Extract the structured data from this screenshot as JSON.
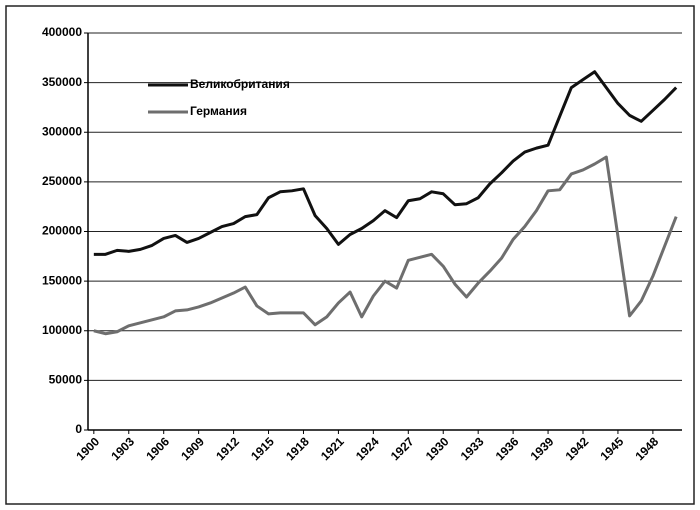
{
  "chart_data": {
    "type": "line",
    "categories": [
      "1900",
      null,
      null,
      "1903",
      null,
      null,
      "1906",
      null,
      null,
      "1909",
      null,
      null,
      "1912",
      null,
      null,
      "1915",
      null,
      null,
      "1918",
      null,
      null,
      "1921",
      null,
      null,
      "1924",
      null,
      null,
      "1927",
      null,
      null,
      "1930",
      null,
      null,
      "1933",
      null,
      null,
      "1936",
      null,
      null,
      "1939",
      null,
      null,
      "1942",
      null,
      null,
      "1945",
      null,
      null,
      "1948",
      null,
      null
    ],
    "series": [
      {
        "name": "Великобритания",
        "color": "#111111",
        "values": [
          177000,
          177000,
          181000,
          180000,
          182000,
          186000,
          193000,
          196000,
          189000,
          193000,
          199000,
          205000,
          208000,
          215000,
          217000,
          234000,
          240000,
          241000,
          243000,
          216000,
          203000,
          187000,
          197000,
          203000,
          211000,
          221000,
          214000,
          231000,
          233000,
          240000,
          238000,
          227000,
          228000,
          234000,
          248000,
          259000,
          271000,
          280000,
          284000,
          287000,
          316000,
          345000,
          353000,
          361000,
          345000,
          329000,
          317000,
          311000,
          322000,
          333000,
          345000
        ]
      },
      {
        "name": "Германия",
        "color": "#6e6e6e",
        "values": [
          100000,
          97000,
          99000,
          105000,
          108000,
          111000,
          114000,
          120000,
          121000,
          124000,
          128000,
          133000,
          138000,
          144000,
          125000,
          117000,
          118000,
          118000,
          118000,
          106000,
          114000,
          128000,
          139000,
          114000,
          135000,
          150000,
          143000,
          171000,
          174000,
          177000,
          165000,
          147000,
          134000,
          148000,
          160000,
          173000,
          192000,
          205000,
          221000,
          241000,
          242000,
          258000,
          262000,
          268000,
          275000,
          195000,
          115000,
          130000,
          155000,
          185000,
          215000
        ]
      }
    ],
    "ylim": [
      0,
      400000
    ],
    "yticks": [
      0,
      50000,
      100000,
      150000,
      200000,
      250000,
      300000,
      350000,
      400000
    ],
    "grid": true,
    "legend": "upper-left"
  }
}
